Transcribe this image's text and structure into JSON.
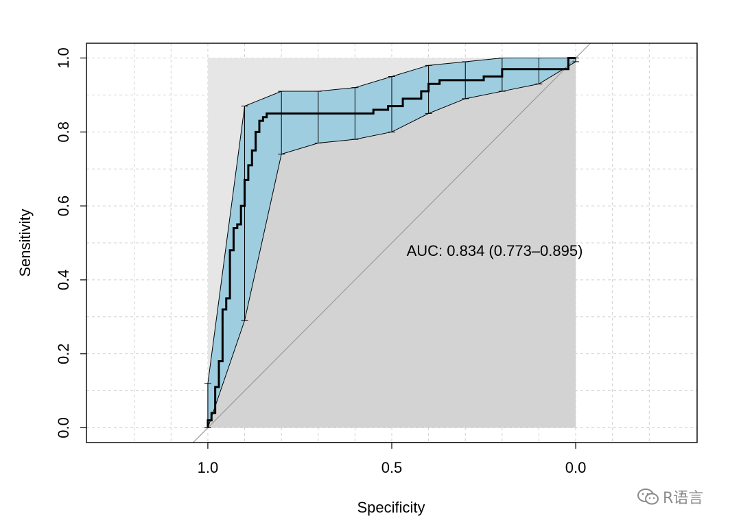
{
  "watermark": {
    "text": "R语言",
    "icon": "wechat-icon"
  },
  "chart_data": {
    "type": "line",
    "subtype": "roc",
    "xlabel": "Specificity",
    "ylabel": "Sensitivity",
    "xlim": [
      1.33,
      -0.33
    ],
    "ylim": [
      -0.04,
      1.04
    ],
    "x_ticks": [
      1.0,
      0.5,
      0.0
    ],
    "x_tick_labels": [
      "1.0",
      "0.5",
      "0.0"
    ],
    "y_ticks": [
      0.0,
      0.2,
      0.4,
      0.6,
      0.8,
      1.0
    ],
    "y_tick_labels": [
      "0.0",
      "0.2",
      "0.4",
      "0.6",
      "0.8",
      "1.0"
    ],
    "grid": true,
    "annotation": "AUC: 0.834 (0.773–0.895)",
    "colors": {
      "ci_fill": "#9ecde0",
      "auc_fill": "#d3d3d3",
      "partial_area": "#e6e6e6",
      "curve": "#000000",
      "diagonal": "#9a9a9a",
      "grid": "#d0d0d0"
    },
    "roc_curve": {
      "specificity": [
        1.0,
        1.0,
        0.99,
        0.99,
        0.98,
        0.98,
        0.97,
        0.97,
        0.96,
        0.96,
        0.95,
        0.95,
        0.94,
        0.94,
        0.93,
        0.93,
        0.92,
        0.92,
        0.91,
        0.91,
        0.9,
        0.9,
        0.89,
        0.89,
        0.88,
        0.88,
        0.87,
        0.87,
        0.86,
        0.86,
        0.85,
        0.85,
        0.84,
        0.84,
        0.55,
        0.55,
        0.51,
        0.51,
        0.47,
        0.47,
        0.42,
        0.42,
        0.4,
        0.4,
        0.37,
        0.37,
        0.25,
        0.25,
        0.2,
        0.2,
        0.02,
        0.02,
        0.0
      ],
      "sensitivity": [
        0.0,
        0.02,
        0.02,
        0.04,
        0.04,
        0.11,
        0.11,
        0.18,
        0.18,
        0.32,
        0.32,
        0.35,
        0.35,
        0.48,
        0.48,
        0.54,
        0.54,
        0.55,
        0.55,
        0.6,
        0.6,
        0.67,
        0.67,
        0.71,
        0.71,
        0.75,
        0.75,
        0.8,
        0.8,
        0.83,
        0.83,
        0.84,
        0.84,
        0.85,
        0.85,
        0.86,
        0.86,
        0.87,
        0.87,
        0.89,
        0.89,
        0.91,
        0.91,
        0.93,
        0.93,
        0.94,
        0.94,
        0.95,
        0.95,
        0.97,
        0.97,
        1.0,
        1.0
      ]
    },
    "ci_band": {
      "specificity": [
        1.0,
        0.9,
        0.8,
        0.7,
        0.6,
        0.5,
        0.4,
        0.3,
        0.2,
        0.1,
        0.0
      ],
      "upper": [
        0.12,
        0.87,
        0.91,
        0.91,
        0.92,
        0.95,
        0.98,
        0.99,
        1.0,
        1.0,
        1.0
      ],
      "lower": [
        0.0,
        0.29,
        0.74,
        0.77,
        0.78,
        0.8,
        0.85,
        0.89,
        0.91,
        0.93,
        0.99
      ]
    }
  }
}
